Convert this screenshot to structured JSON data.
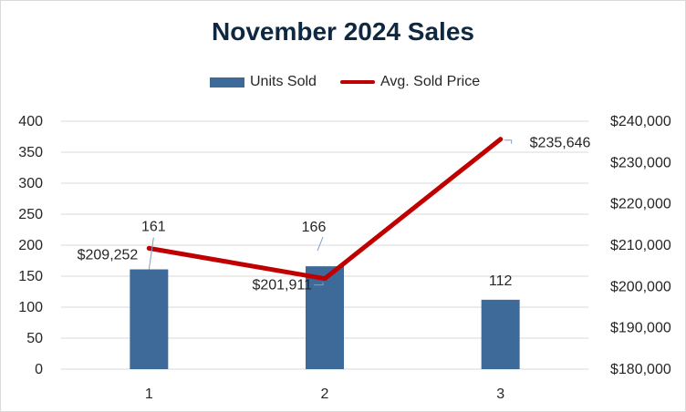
{
  "chart_data": {
    "type": "bar",
    "title": "November 2024 Sales",
    "categories": [
      "1",
      "2",
      "3"
    ],
    "series": [
      {
        "name": "Units Sold",
        "type": "bar",
        "axis": "left",
        "values": [
          161,
          166,
          112
        ],
        "color": "#3e6a99"
      },
      {
        "name": "Avg. Sold Price",
        "type": "line",
        "axis": "right",
        "values": [
          209252,
          201911,
          235646
        ],
        "color": "#c00000"
      }
    ],
    "y_left": {
      "min": 0,
      "max": 400,
      "step": 50,
      "ticks": [
        "0",
        "50",
        "100",
        "150",
        "200",
        "250",
        "300",
        "350",
        "400"
      ]
    },
    "y_right": {
      "min": 180000,
      "max": 240000,
      "step": 10000,
      "ticks": [
        "$180,000",
        "$190,000",
        "$200,000",
        "$210,000",
        "$220,000",
        "$230,000",
        "$240,000"
      ]
    },
    "bar_labels": [
      "161",
      "166",
      "112"
    ],
    "line_labels": [
      "$209,252",
      "$201,911",
      "$235,646"
    ],
    "grid": true,
    "legend_position": "top"
  },
  "colors": {
    "title": "#0e2841",
    "gridline": "#d9d9d9",
    "axis_text": "#262626",
    "leader": "#7f9fbf"
  }
}
